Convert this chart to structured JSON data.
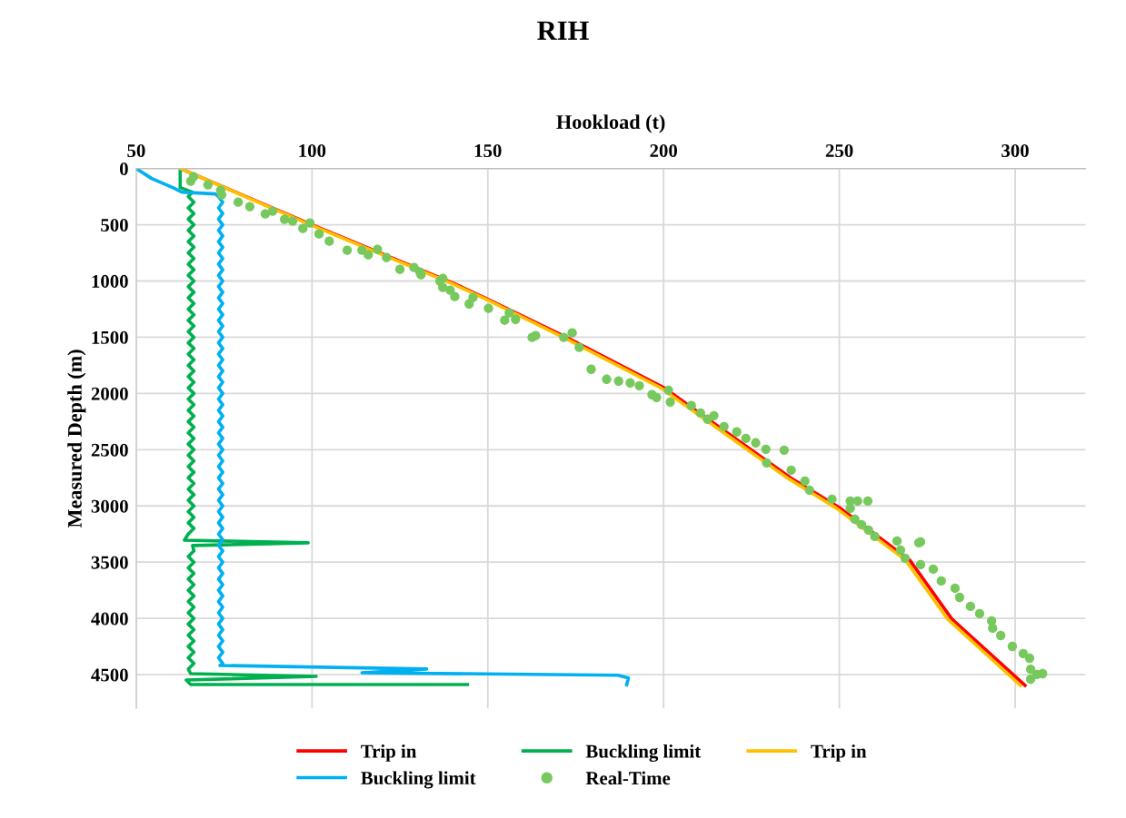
{
  "chart_data": {
    "type": "line",
    "title": "RIH",
    "xlabel": "Hookload (t)",
    "ylabel": "Measured Depth (m)",
    "xlim": [
      50,
      320
    ],
    "xticks": [
      50,
      100,
      150,
      200,
      250,
      300
    ],
    "ylim": [
      4800,
      0
    ],
    "yticks": [
      0,
      500,
      1000,
      1500,
      2000,
      2500,
      3000,
      3500,
      4000,
      4500
    ],
    "grid": true,
    "legend": "bottom",
    "series": [
      {
        "name": "Trip in",
        "color": "#ff0000",
        "x": [
          62.5,
          100,
          140.6,
          150,
          172.4,
          200,
          236.3,
          250.3,
          270,
          282,
          302.8
        ],
        "values": [
          0,
          500,
          1025,
          1163,
          1502,
          1947,
          2754,
          3021,
          3481,
          4006,
          4596
        ]
      },
      {
        "name": "Buckling limit",
        "color": "#00b050",
        "x": [
          62.5,
          62.5,
          66,
          64.8,
          66.4,
          64.8,
          66.4,
          64.8,
          66.4,
          64.8,
          66.4,
          64.8,
          66.4,
          64.8,
          66.4,
          64.8,
          66.4,
          64.8,
          66.4,
          64.8,
          66.4,
          64.8,
          66.4,
          64.8,
          66.4,
          64.8,
          66.4,
          64.8,
          66.4,
          64.8,
          66.4,
          64.8,
          66.4,
          64.8,
          66.4,
          64.8,
          66.4,
          64.8,
          66.4,
          64.8,
          66.4,
          64.8,
          66.4,
          64.8,
          66.4,
          64.8,
          66.4,
          64.8,
          66.4,
          64.8,
          66.4,
          64.8,
          66.4,
          64.8,
          66.4,
          64.8,
          66.4,
          64.8,
          66.4,
          64.8,
          66.4,
          64.8,
          66.4,
          64.8,
          63.7,
          98.9,
          66,
          66.4,
          64.8,
          66.4,
          64.8,
          66.4,
          64.8,
          66.4,
          64.8,
          66.4,
          64.8,
          66.4,
          64.8,
          66.4,
          64.8,
          66.4,
          64.8,
          66.4,
          64.8,
          66.4,
          64.8,
          66.4,
          64.8,
          65.5,
          101.2,
          64.2,
          65.5,
          144.2
        ],
        "values": [
          0,
          170,
          210,
          250,
          300,
          350,
          400,
          450,
          500,
          550,
          600,
          650,
          700,
          750,
          800,
          850,
          900,
          950,
          1000,
          1050,
          1100,
          1150,
          1200,
          1250,
          1300,
          1350,
          1400,
          1450,
          1500,
          1550,
          1600,
          1650,
          1700,
          1750,
          1800,
          1850,
          1900,
          1950,
          2000,
          2050,
          2100,
          2150,
          2200,
          2250,
          2300,
          2350,
          2400,
          2450,
          2500,
          2550,
          2600,
          2650,
          2700,
          2750,
          2800,
          2850,
          2900,
          2950,
          3000,
          3050,
          3100,
          3150,
          3200,
          3250,
          3304,
          3328,
          3352,
          3400,
          3450,
          3500,
          3550,
          3600,
          3650,
          3700,
          3750,
          3800,
          3850,
          3900,
          3950,
          4000,
          4050,
          4100,
          4150,
          4200,
          4250,
          4300,
          4350,
          4400,
          4450,
          4491,
          4515,
          4548,
          4588,
          4588
        ]
      },
      {
        "name": "Trip in",
        "color": "#ffc000",
        "x": [
          62.5,
          99.5,
          140,
          149.5,
          171.5,
          199,
          235.3,
          249.2,
          268.8,
          280.8,
          301.5
        ],
        "values": [
          0,
          500,
          1025,
          1163,
          1502,
          1947,
          2754,
          3021,
          3481,
          4006,
          4596
        ]
      },
      {
        "name": "Buckling limit",
        "color": "#00b0f0",
        "x": [
          50,
          54.4,
          60.4,
          63,
          72.5,
          73.4,
          74.6,
          73.4,
          74.6,
          73.4,
          74.6,
          73.4,
          74.6,
          73.4,
          74.6,
          73.4,
          74.6,
          73.4,
          74.6,
          73.4,
          74.6,
          73.4,
          74.6,
          73.4,
          74.6,
          73.4,
          74.6,
          73.4,
          74.6,
          73.4,
          74.6,
          73.4,
          74.6,
          73.4,
          74.6,
          73.4,
          74.6,
          73.4,
          74.6,
          73.4,
          74.6,
          73.4,
          74.6,
          73.4,
          74.6,
          73.4,
          74.6,
          73.4,
          74.6,
          73.4,
          74.6,
          73.4,
          74.6,
          73.4,
          74.6,
          73.4,
          74.6,
          73.4,
          74.6,
          73.4,
          74.6,
          73.4,
          74.6,
          73.4,
          74.6,
          73.4,
          74.6,
          73.4,
          74.6,
          73.4,
          74.6,
          73.4,
          74.6,
          73.4,
          74.6,
          73.4,
          74.6,
          73.4,
          74.6,
          73.4,
          74.6,
          73.4,
          74.6,
          73.4,
          74.6,
          73.4,
          74.6,
          73.4,
          74.6,
          73.8,
          132.6,
          114.2,
          187,
          190,
          189.5
        ],
        "values": [
          0,
          89,
          170,
          210,
          226,
          250,
          300,
          350,
          400,
          450,
          500,
          550,
          600,
          650,
          700,
          750,
          800,
          850,
          900,
          950,
          1000,
          1050,
          1100,
          1150,
          1200,
          1250,
          1300,
          1350,
          1400,
          1450,
          1500,
          1550,
          1600,
          1650,
          1700,
          1750,
          1800,
          1850,
          1900,
          1950,
          2000,
          2050,
          2100,
          2150,
          2200,
          2250,
          2300,
          2350,
          2400,
          2450,
          2500,
          2550,
          2600,
          2650,
          2700,
          2750,
          2800,
          2850,
          2900,
          2950,
          3000,
          3050,
          3100,
          3150,
          3200,
          3250,
          3300,
          3350,
          3400,
          3450,
          3500,
          3550,
          3600,
          3650,
          3700,
          3750,
          3800,
          3850,
          3900,
          3950,
          4000,
          4050,
          4100,
          4150,
          4200,
          4250,
          4300,
          4350,
          4400,
          4418,
          4450,
          4483,
          4505,
          4530,
          4590
        ]
      },
      {
        "name": "Real-Time",
        "color": "#77c95d",
        "type": "scatter",
        "marker": "circle",
        "x": [
          66.3,
          65.5,
          70.4,
          74,
          74.3,
          79,
          82.3,
          86.7,
          88.8,
          92.2,
          94.5,
          99.4,
          97.4,
          102,
          104.9,
          110,
          114.2,
          116,
          118.6,
          121.2,
          125,
          129,
          130.7,
          131,
          136.4,
          137.2,
          137.2,
          139.3,
          140.6,
          144.7,
          145.8,
          150.2,
          154.8,
          156.1,
          157.9,
          162.6,
          163.6,
          171.6,
          174,
          176,
          179.4,
          183.8,
          187.2,
          190.5,
          193.1,
          196.7,
          198,
          201.4,
          201.9,
          207.9,
          210.5,
          212.5,
          214.3,
          217.2,
          220.8,
          223.4,
          226.2,
          229.1,
          234.3,
          229.3,
          236.3,
          240.2,
          241.5,
          247.9,
          253.1,
          253.1,
          255.2,
          258.1,
          254.4,
          256.3,
          258.3,
          260.1,
          266.4,
          267.4,
          268.7,
          272.6,
          273.1,
          273.1,
          276.7,
          279,
          282.9,
          284.2,
          287.3,
          289.9,
          293.3,
          293.6,
          295.9,
          299.2,
          302.3,
          304.1,
          304.4,
          306.2,
          307.8,
          304.4
        ],
        "values": [
          73,
          113,
          145,
          194,
          234,
          299,
          339,
          404,
          380,
          452,
          468,
          485,
          533,
          582,
          646,
          727,
          727,
          767,
          719,
          792,
          897,
          880,
          921,
          945,
          1002,
          977,
          1058,
          1082,
          1139,
          1204,
          1147,
          1244,
          1349,
          1284,
          1341,
          1502,
          1486,
          1502,
          1462,
          1591,
          1785,
          1874,
          1890,
          1906,
          1931,
          2011,
          2036,
          1971,
          2076,
          2108,
          2173,
          2229,
          2197,
          2294,
          2342,
          2399,
          2439,
          2496,
          2504,
          2617,
          2682,
          2779,
          2859,
          2940,
          3021,
          2956,
          2956,
          2956,
          3118,
          3166,
          3215,
          3272,
          3312,
          3393,
          3465,
          3328,
          3320,
          3522,
          3562,
          3667,
          3732,
          3813,
          3893,
          3958,
          4022,
          4087,
          4152,
          4249,
          4313,
          4354,
          4451,
          4499,
          4491,
          4540
        ]
      }
    ]
  }
}
